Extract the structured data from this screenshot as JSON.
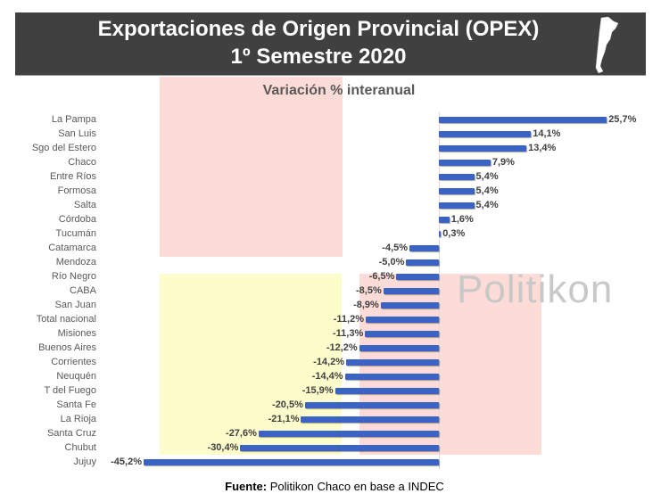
{
  "header": {
    "title_line1": "Exportaciones de Origen Provincial (OPEX)",
    "title_line2": "1º Semestre 2020"
  },
  "watermark": "Politikon",
  "source": {
    "label": "Fuente:",
    "text": " Politikon Chaco en base a INDEC"
  },
  "colors": {
    "bar": "#3a63c4",
    "header_bg": "#404040",
    "highlight_pink": "#fddcd8",
    "highlight_yellow": "#fdfdcc"
  },
  "chart_data": {
    "type": "bar",
    "orientation": "horizontal",
    "title": "Variación % interanual",
    "categories": [
      "La Pampa",
      "San Luis",
      "Sgo del Estero",
      "Chaco",
      "Entre Ríos",
      "Formosa",
      "Salta",
      "Córdoba",
      "Tucumán",
      "Catamarca",
      "Mendoza",
      "Río Negro",
      "CABA",
      "San Juan",
      "Total nacional",
      "Misiones",
      "Buenos Aires",
      "Corrientes",
      "Neuquén",
      "T del Fuego",
      "Santa Fe",
      "La Rioja",
      "Santa Cruz",
      "Chubut",
      "Jujuy"
    ],
    "values": [
      25.7,
      14.1,
      13.4,
      7.9,
      5.4,
      5.4,
      5.4,
      1.6,
      0.3,
      -4.5,
      -5.0,
      -6.5,
      -8.5,
      -8.9,
      -11.2,
      -11.3,
      -12.2,
      -14.2,
      -14.4,
      -15.9,
      -20.5,
      -21.1,
      -27.6,
      -30.4,
      -45.2
    ],
    "labels": [
      "25,7%",
      "14,1%",
      "13,4%",
      "7,9%",
      "5,4%",
      "5,4%",
      "5,4%",
      "1,6%",
      "0,3%",
      "-4,5%",
      "-5,0%",
      "-6,5%",
      "-8,5%",
      "-8,9%",
      "-11,2%",
      "-11,3%",
      "-12,2%",
      "-14,2%",
      "-14,4%",
      "-15,9%",
      "-20,5%",
      "-21,1%",
      "-27,6%",
      "-30,4%",
      "-45,2%"
    ],
    "xlim": [
      -45.2,
      25.7
    ],
    "grid": false,
    "legend": "none"
  }
}
